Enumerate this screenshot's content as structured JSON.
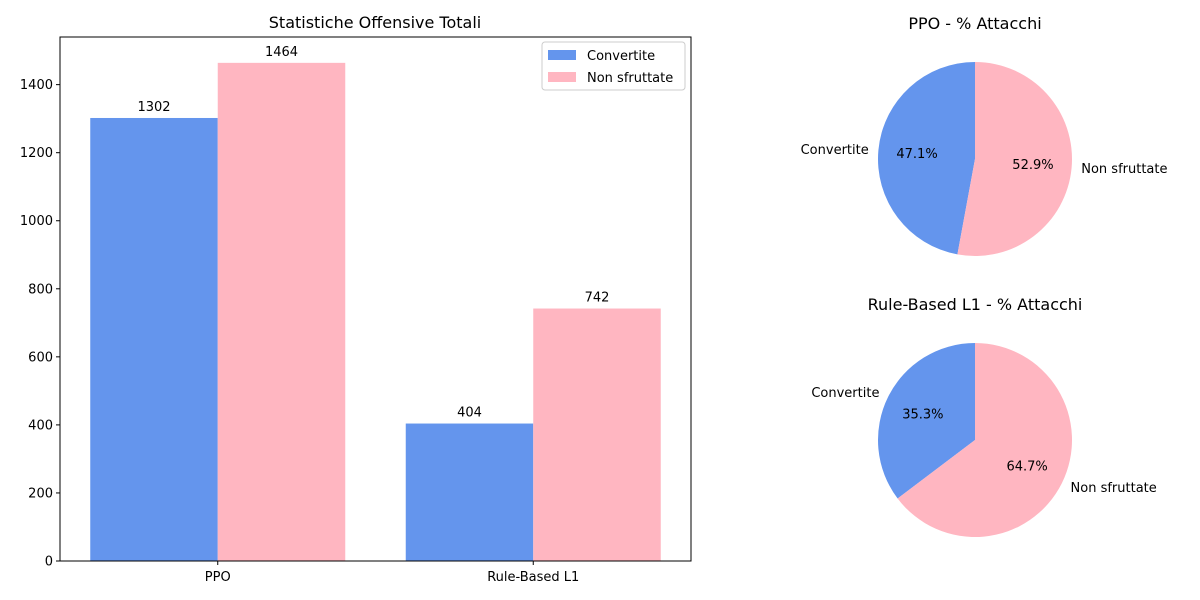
{
  "colors": {
    "converted": "#6495ED",
    "unexploited": "#FFB6C1"
  },
  "chart_data": [
    {
      "type": "bar",
      "title": "Statistiche Offensive Totali",
      "categories": [
        "PPO",
        "Rule-Based L1"
      ],
      "series": [
        {
          "name": "Convertite",
          "values": [
            1302,
            404
          ]
        },
        {
          "name": "Non sfruttate",
          "values": [
            1464,
            742
          ]
        }
      ],
      "xlabel": "",
      "ylabel": "",
      "ylim": [
        0,
        1540
      ],
      "yticks": [
        0,
        200,
        400,
        600,
        800,
        1000,
        1200,
        1400
      ],
      "data_labels": [
        "1302",
        "404",
        "1464",
        "742"
      ],
      "legend": "top-right",
      "grid": false
    },
    {
      "type": "pie",
      "title": "PPO - % Attacchi",
      "labels": [
        "Convertite",
        "Non sfruttate"
      ],
      "values": [
        47.1,
        52.9
      ],
      "pct_labels": [
        "47.1%",
        "52.9%"
      ]
    },
    {
      "type": "pie",
      "title": "Rule-Based L1 - % Attacchi",
      "labels": [
        "Convertite",
        "Non sfruttate"
      ],
      "values": [
        35.3,
        64.7
      ],
      "pct_labels": [
        "35.3%",
        "64.7%"
      ]
    }
  ]
}
